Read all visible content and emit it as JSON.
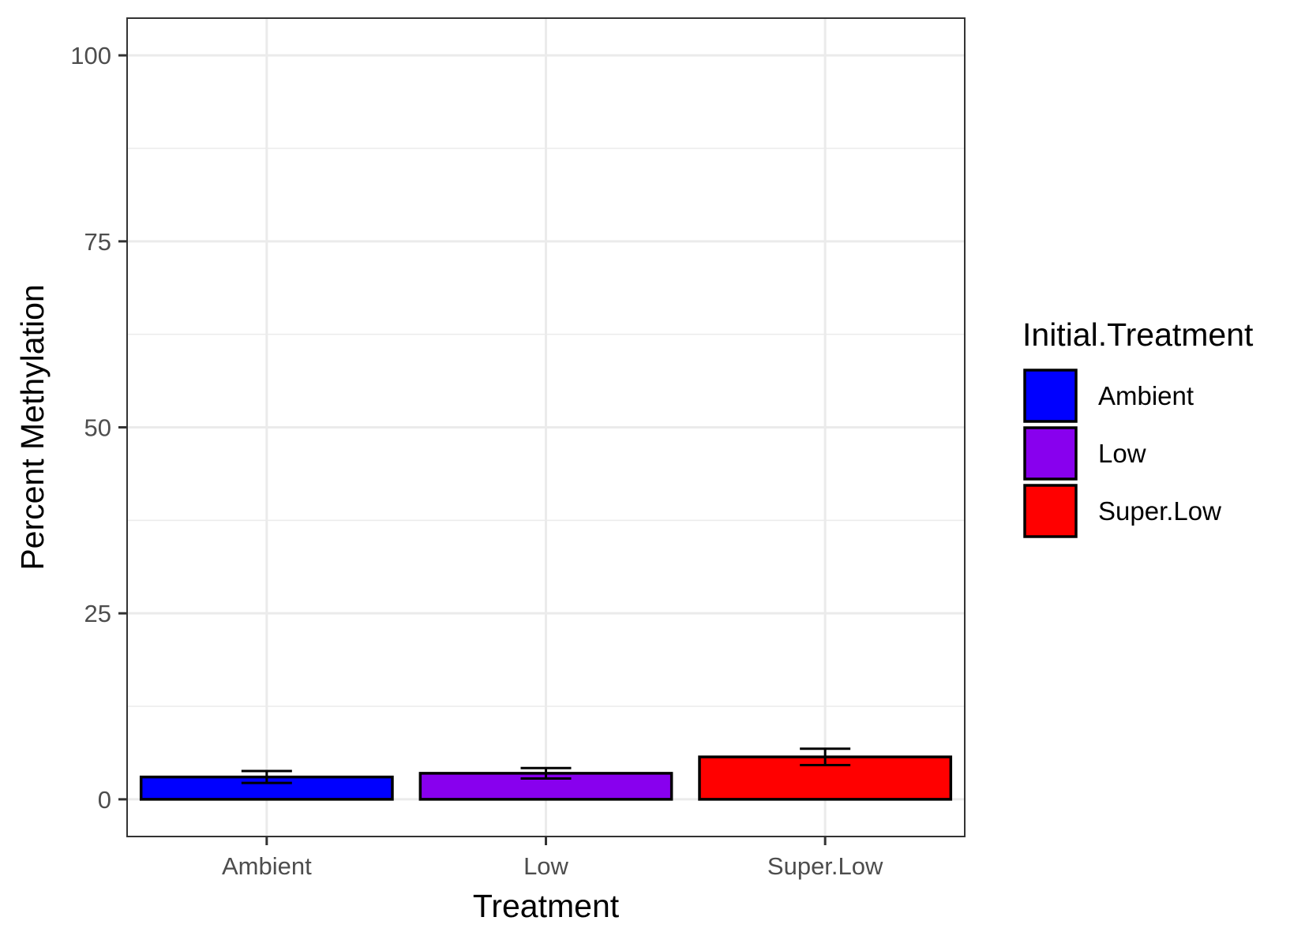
{
  "chart_data": {
    "type": "bar",
    "categories": [
      "Ambient",
      "Low",
      "Super.Low"
    ],
    "series": [
      {
        "values": [
          3.0,
          3.5,
          5.7
        ],
        "error_low": [
          2.2,
          2.8,
          4.6
        ],
        "error_high": [
          3.8,
          4.2,
          6.8
        ]
      }
    ],
    "bar_colors": [
      "#0000ff",
      "#8800ee",
      "#ff0000"
    ],
    "xlabel": "Treatment",
    "ylabel": "Percent Methylation",
    "ylim": [
      -5,
      105
    ],
    "yticks": [
      0,
      25,
      50,
      75,
      100
    ],
    "grid": true,
    "legend": {
      "title": "Initial.Treatment",
      "placement": "right",
      "entries": [
        {
          "label": "Ambient",
          "color": "#0000ff"
        },
        {
          "label": "Low",
          "color": "#8800ee"
        },
        {
          "label": "Super.Low",
          "color": "#ff0000"
        }
      ]
    }
  }
}
